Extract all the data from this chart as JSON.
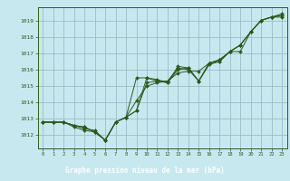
{
  "title": "Graphe pression niveau de la mer (hPa)",
  "background_color": "#c8e8f0",
  "plot_bg_color": "#c8e8f0",
  "grid_color": "#9abec8",
  "line_color": "#2d5a1e",
  "marker_color": "#2d5a1e",
  "xlabel_bg": "#2d5a1e",
  "xlabel_fg": "#ffffff",
  "x_ticks": [
    0,
    1,
    2,
    3,
    4,
    5,
    6,
    7,
    8,
    9,
    10,
    11,
    12,
    13,
    14,
    15,
    16,
    17,
    18,
    19,
    20,
    21,
    22,
    23
  ],
  "y_ticks": [
    1012,
    1013,
    1014,
    1015,
    1016,
    1017,
    1018,
    1019
  ],
  "ylim": [
    1011.2,
    1019.8
  ],
  "xlim": [
    -0.5,
    23.5
  ],
  "series": [
    [
      1012.8,
      1012.8,
      1012.8,
      1012.6,
      1012.5,
      1012.2,
      1011.7,
      1012.8,
      1013.1,
      1013.5,
      1015.5,
      1015.4,
      1015.2,
      1016.2,
      1016.1,
      1015.3,
      1016.4,
      1016.5,
      1017.1,
      1017.1,
      1018.3,
      1019.0,
      1019.2,
      1019.3
    ],
    [
      1012.8,
      1012.8,
      1012.8,
      1012.6,
      1012.4,
      1012.3,
      1011.7,
      1012.8,
      1013.1,
      1014.1,
      1015.0,
      1015.2,
      1015.3,
      1015.8,
      1015.9,
      1015.9,
      1016.4,
      1016.6,
      1017.1,
      1017.5,
      1018.3,
      1019.0,
      1019.2,
      1019.4
    ],
    [
      1012.8,
      1012.8,
      1012.8,
      1012.5,
      1012.3,
      1012.2,
      1011.7,
      1012.8,
      1013.1,
      1013.5,
      1015.2,
      1015.3,
      1015.2,
      1016.0,
      1016.1,
      1015.3,
      1016.4,
      1016.6,
      1017.1,
      1017.5,
      1018.3,
      1019.0,
      1019.2,
      1019.3
    ],
    [
      1012.8,
      1012.8,
      1012.8,
      1012.6,
      1012.5,
      1012.2,
      1011.7,
      1012.8,
      1013.1,
      1015.5,
      1015.5,
      1015.3,
      1015.3,
      1016.1,
      1016.0,
      1015.3,
      1016.3,
      1016.5,
      1017.1,
      1017.5,
      1018.3,
      1019.0,
      1019.2,
      1019.2
    ]
  ]
}
